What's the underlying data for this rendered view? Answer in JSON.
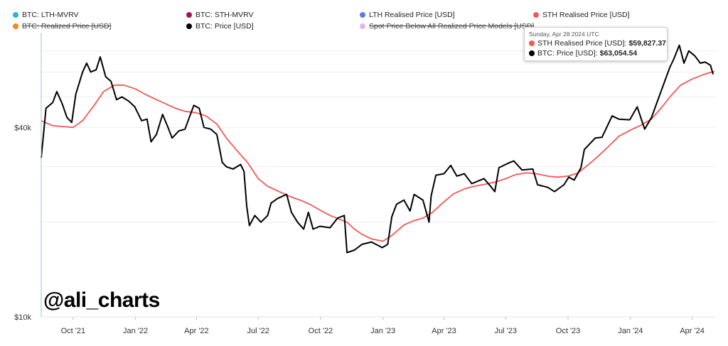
{
  "legend": [
    {
      "label": "BTC: LTH-MVRV",
      "color": "#29b6d8",
      "enabled": false
    },
    {
      "label": "BTC: STH-MVRV",
      "color": "#a0155a",
      "enabled": false
    },
    {
      "label": "LTH Realised Price [USD]",
      "color": "#5b7fd6",
      "enabled": false
    },
    {
      "label": "STH Realised Price [USD]",
      "color": "#f05a55",
      "enabled": true
    },
    {
      "label": "BTC: Realized Price [USD]",
      "color": "#f08a1e",
      "enabled": false
    },
    {
      "label": "BTC: Price [USD]",
      "color": "#000000",
      "enabled": true
    },
    {
      "label": "Spot Price Below All Realized Price Models [USD]",
      "color": "#e8b4e6",
      "enabled": false
    }
  ],
  "tooltip": {
    "date": "Sunday, Apr 28 2024 UTC",
    "rows": [
      {
        "label": "STH Realised Price [USD]:",
        "value": "$59,827.37",
        "color": "#f05a55"
      },
      {
        "label": "BTC: Price [USD]:",
        "value": "$63,054.54",
        "color": "#000000"
      }
    ]
  },
  "watermark": "@ali_charts",
  "chart_data": {
    "type": "line",
    "title": "",
    "xlabel": "",
    "ylabel": "",
    "yscale": "log",
    "ylim": [
      10000,
      80000
    ],
    "y_ticks": [
      {
        "value": 10000,
        "label": "$10k"
      },
      {
        "value": 40000,
        "label": "$40k"
      }
    ],
    "x_range": [
      "2021-08-15",
      "2024-05-05"
    ],
    "x_ticks": [
      {
        "date": "2021-10-01",
        "label": "Oct '21"
      },
      {
        "date": "2022-01-01",
        "label": "Jan '22"
      },
      {
        "date": "2022-04-01",
        "label": "Apr '22"
      },
      {
        "date": "2022-07-01",
        "label": "Jul '22"
      },
      {
        "date": "2022-10-01",
        "label": "Oct '22"
      },
      {
        "date": "2023-01-01",
        "label": "Jan '23"
      },
      {
        "date": "2023-04-01",
        "label": "Apr '23"
      },
      {
        "date": "2023-07-01",
        "label": "Jul '23"
      },
      {
        "date": "2023-10-01",
        "label": "Oct '23"
      },
      {
        "date": "2024-01-01",
        "label": "Jan '24"
      },
      {
        "date": "2024-04-01",
        "label": "Apr '24"
      }
    ],
    "grid": true,
    "series": [
      {
        "name": "BTC: Price [USD]",
        "color": "#000000",
        "points": [
          [
            "2021-08-15",
            32000
          ],
          [
            "2021-08-22",
            46000
          ],
          [
            "2021-09-01",
            48000
          ],
          [
            "2021-09-07",
            52000
          ],
          [
            "2021-09-15",
            47500
          ],
          [
            "2021-09-22",
            43000
          ],
          [
            "2021-09-29",
            41500
          ],
          [
            "2021-10-05",
            51000
          ],
          [
            "2021-10-15",
            60000
          ],
          [
            "2021-10-21",
            64000
          ],
          [
            "2021-10-27",
            60000
          ],
          [
            "2021-11-04",
            61000
          ],
          [
            "2021-11-10",
            67000
          ],
          [
            "2021-11-18",
            58000
          ],
          [
            "2021-11-26",
            56000
          ],
          [
            "2021-12-04",
            49000
          ],
          [
            "2021-12-12",
            50000
          ],
          [
            "2021-12-22",
            48500
          ],
          [
            "2021-12-31",
            46500
          ],
          [
            "2022-01-10",
            42000
          ],
          [
            "2022-01-18",
            42500
          ],
          [
            "2022-01-24",
            36000
          ],
          [
            "2022-02-01",
            38000
          ],
          [
            "2022-02-10",
            44000
          ],
          [
            "2022-02-18",
            40000
          ],
          [
            "2022-02-24",
            37000
          ],
          [
            "2022-03-06",
            39000
          ],
          [
            "2022-03-15",
            39500
          ],
          [
            "2022-03-28",
            47000
          ],
          [
            "2022-04-05",
            46000
          ],
          [
            "2022-04-12",
            40000
          ],
          [
            "2022-04-22",
            39500
          ],
          [
            "2022-05-01",
            38000
          ],
          [
            "2022-05-09",
            31000
          ],
          [
            "2022-05-15",
            30000
          ],
          [
            "2022-05-25",
            29500
          ],
          [
            "2022-06-05",
            30500
          ],
          [
            "2022-06-10",
            29000
          ],
          [
            "2022-06-14",
            22500
          ],
          [
            "2022-06-18",
            19500
          ],
          [
            "2022-06-26",
            21000
          ],
          [
            "2022-07-05",
            20000
          ],
          [
            "2022-07-15",
            21000
          ],
          [
            "2022-07-20",
            23000
          ],
          [
            "2022-07-30",
            23800
          ],
          [
            "2022-08-12",
            24500
          ],
          [
            "2022-08-19",
            21500
          ],
          [
            "2022-08-28",
            20000
          ],
          [
            "2022-09-06",
            19000
          ],
          [
            "2022-09-13",
            21500
          ],
          [
            "2022-09-20",
            19000
          ],
          [
            "2022-09-30",
            19400
          ],
          [
            "2022-10-15",
            19200
          ],
          [
            "2022-10-26",
            20600
          ],
          [
            "2022-11-05",
            21000
          ],
          [
            "2022-11-09",
            16000
          ],
          [
            "2022-11-20",
            16300
          ],
          [
            "2022-12-01",
            17000
          ],
          [
            "2022-12-15",
            17300
          ],
          [
            "2022-12-31",
            16600
          ],
          [
            "2023-01-08",
            17000
          ],
          [
            "2023-01-14",
            20800
          ],
          [
            "2023-01-21",
            22800
          ],
          [
            "2023-02-01",
            23500
          ],
          [
            "2023-02-10",
            21700
          ],
          [
            "2023-02-16",
            24500
          ],
          [
            "2023-03-01",
            23500
          ],
          [
            "2023-03-10",
            20000
          ],
          [
            "2023-03-13",
            24200
          ],
          [
            "2023-03-20",
            28200
          ],
          [
            "2023-04-01",
            28500
          ],
          [
            "2023-04-11",
            30300
          ],
          [
            "2023-04-20",
            28000
          ],
          [
            "2023-05-01",
            28500
          ],
          [
            "2023-05-12",
            26500
          ],
          [
            "2023-05-30",
            27500
          ],
          [
            "2023-06-10",
            25800
          ],
          [
            "2023-06-15",
            25000
          ],
          [
            "2023-06-21",
            29800
          ],
          [
            "2023-07-05",
            30800
          ],
          [
            "2023-07-13",
            31300
          ],
          [
            "2023-07-25",
            29300
          ],
          [
            "2023-08-10",
            29500
          ],
          [
            "2023-08-17",
            26300
          ],
          [
            "2023-09-01",
            25800
          ],
          [
            "2023-09-11",
            25000
          ],
          [
            "2023-09-25",
            26300
          ],
          [
            "2023-10-02",
            27800
          ],
          [
            "2023-10-10",
            27200
          ],
          [
            "2023-10-20",
            29800
          ],
          [
            "2023-10-25",
            34000
          ],
          [
            "2023-11-10",
            37000
          ],
          [
            "2023-11-20",
            37200
          ],
          [
            "2023-12-05",
            43500
          ],
          [
            "2023-12-15",
            42500
          ],
          [
            "2023-12-31",
            42300
          ],
          [
            "2024-01-11",
            46500
          ],
          [
            "2024-01-22",
            39500
          ],
          [
            "2024-02-01",
            43000
          ],
          [
            "2024-02-15",
            52000
          ],
          [
            "2024-02-28",
            62000
          ],
          [
            "2024-03-05",
            66000
          ],
          [
            "2024-03-13",
            73000
          ],
          [
            "2024-03-20",
            64000
          ],
          [
            "2024-03-27",
            70000
          ],
          [
            "2024-04-05",
            67500
          ],
          [
            "2024-04-13",
            64000
          ],
          [
            "2024-04-20",
            64500
          ],
          [
            "2024-04-28",
            63054.54
          ],
          [
            "2024-05-02",
            59000
          ]
        ]
      },
      {
        "name": "STH Realised Price [USD]",
        "color": "#f05a55",
        "points": [
          [
            "2021-08-15",
            42000
          ],
          [
            "2021-09-01",
            40500
          ],
          [
            "2021-09-20",
            40200
          ],
          [
            "2021-10-01",
            40000
          ],
          [
            "2021-10-15",
            42000
          ],
          [
            "2021-11-01",
            47000
          ],
          [
            "2021-11-15",
            52000
          ],
          [
            "2021-12-01",
            54500
          ],
          [
            "2021-12-15",
            54500
          ],
          [
            "2022-01-01",
            53000
          ],
          [
            "2022-01-15",
            51000
          ],
          [
            "2022-02-01",
            49000
          ],
          [
            "2022-02-15",
            47500
          ],
          [
            "2022-03-01",
            46000
          ],
          [
            "2022-03-15",
            45000
          ],
          [
            "2022-04-01",
            44500
          ],
          [
            "2022-04-15",
            43500
          ],
          [
            "2022-05-01",
            41000
          ],
          [
            "2022-05-15",
            37000
          ],
          [
            "2022-06-01",
            33500
          ],
          [
            "2022-06-15",
            31000
          ],
          [
            "2022-07-01",
            27500
          ],
          [
            "2022-07-15",
            26000
          ],
          [
            "2022-08-01",
            25000
          ],
          [
            "2022-08-15",
            24200
          ],
          [
            "2022-09-01",
            23500
          ],
          [
            "2022-09-15",
            22800
          ],
          [
            "2022-10-01",
            21800
          ],
          [
            "2022-10-15",
            21000
          ],
          [
            "2022-11-01",
            20300
          ],
          [
            "2022-11-09",
            20000
          ],
          [
            "2022-11-20",
            19000
          ],
          [
            "2022-12-01",
            18300
          ],
          [
            "2022-12-15",
            17700
          ],
          [
            "2023-01-01",
            17400
          ],
          [
            "2023-01-15",
            18200
          ],
          [
            "2023-02-01",
            19600
          ],
          [
            "2023-02-15",
            20200
          ],
          [
            "2023-03-01",
            20600
          ],
          [
            "2023-03-15",
            21500
          ],
          [
            "2023-04-01",
            23200
          ],
          [
            "2023-04-15",
            24600
          ],
          [
            "2023-05-01",
            25500
          ],
          [
            "2023-05-15",
            26000
          ],
          [
            "2023-06-01",
            26400
          ],
          [
            "2023-06-15",
            26800
          ],
          [
            "2023-07-01",
            27500
          ],
          [
            "2023-07-15",
            28300
          ],
          [
            "2023-08-01",
            28700
          ],
          [
            "2023-08-15",
            28500
          ],
          [
            "2023-09-01",
            28000
          ],
          [
            "2023-09-15",
            27800
          ],
          [
            "2023-10-01",
            28000
          ],
          [
            "2023-10-15",
            28600
          ],
          [
            "2023-11-01",
            30600
          ],
          [
            "2023-11-15",
            32500
          ],
          [
            "2023-12-01",
            35000
          ],
          [
            "2023-12-15",
            37500
          ],
          [
            "2024-01-01",
            39200
          ],
          [
            "2024-01-15",
            40500
          ],
          [
            "2024-02-01",
            42500
          ],
          [
            "2024-02-15",
            46000
          ],
          [
            "2024-03-01",
            50500
          ],
          [
            "2024-03-15",
            54500
          ],
          [
            "2024-04-01",
            57000
          ],
          [
            "2024-04-15",
            58600
          ],
          [
            "2024-04-28",
            59827.37
          ],
          [
            "2024-05-04",
            60200
          ]
        ]
      }
    ]
  }
}
